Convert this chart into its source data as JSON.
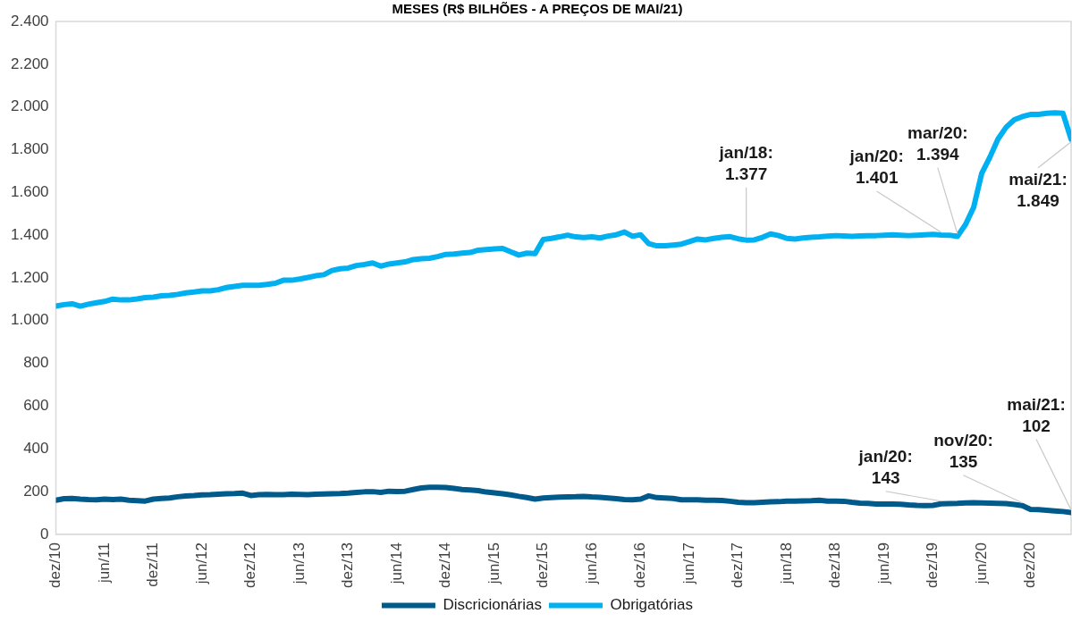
{
  "chart_data": {
    "type": "line",
    "title": "MESES (R$ BILHÕES - A PREÇOS DE MAI/21)",
    "x": [
      "2010-12",
      "2011-01",
      "2011-02",
      "2011-03",
      "2011-04",
      "2011-05",
      "2011-06",
      "2011-07",
      "2011-08",
      "2011-09",
      "2011-10",
      "2011-11",
      "2011-12",
      "2012-01",
      "2012-02",
      "2012-03",
      "2012-04",
      "2012-05",
      "2012-06",
      "2012-07",
      "2012-08",
      "2012-09",
      "2012-10",
      "2012-11",
      "2012-12",
      "2013-01",
      "2013-02",
      "2013-03",
      "2013-04",
      "2013-05",
      "2013-06",
      "2013-07",
      "2013-08",
      "2013-09",
      "2013-10",
      "2013-11",
      "2013-12",
      "2014-01",
      "2014-02",
      "2014-03",
      "2014-04",
      "2014-05",
      "2014-06",
      "2014-07",
      "2014-08",
      "2014-09",
      "2014-10",
      "2014-11",
      "2014-12",
      "2015-01",
      "2015-02",
      "2015-03",
      "2015-04",
      "2015-05",
      "2015-06",
      "2015-07",
      "2015-08",
      "2015-09",
      "2015-10",
      "2015-11",
      "2015-12",
      "2016-01",
      "2016-02",
      "2016-03",
      "2016-04",
      "2016-05",
      "2016-06",
      "2016-07",
      "2016-08",
      "2016-09",
      "2016-10",
      "2016-11",
      "2016-12",
      "2017-01",
      "2017-02",
      "2017-03",
      "2017-04",
      "2017-05",
      "2017-06",
      "2017-07",
      "2017-08",
      "2017-09",
      "2017-10",
      "2017-11",
      "2017-12",
      "2018-01",
      "2018-02",
      "2018-03",
      "2018-04",
      "2018-05",
      "2018-06",
      "2018-07",
      "2018-08",
      "2018-09",
      "2018-10",
      "2018-11",
      "2018-12",
      "2019-01",
      "2019-02",
      "2019-03",
      "2019-04",
      "2019-05",
      "2019-06",
      "2019-07",
      "2019-08",
      "2019-09",
      "2019-10",
      "2019-11",
      "2019-12",
      "2020-01",
      "2020-02",
      "2020-03",
      "2020-04",
      "2020-05",
      "2020-06",
      "2020-07",
      "2020-08",
      "2020-09",
      "2020-10",
      "2020-11",
      "2020-12",
      "2021-01",
      "2021-02",
      "2021-03",
      "2021-04",
      "2021-05"
    ],
    "series": [
      {
        "name": "Discricionárias",
        "color": "#005b8c",
        "values": [
          160,
          167,
          168,
          165,
          163,
          162,
          165,
          163,
          165,
          160,
          158,
          156,
          165,
          168,
          170,
          176,
          180,
          182,
          185,
          186,
          188,
          190,
          191,
          193,
          182,
          186,
          187,
          186,
          186,
          188,
          187,
          186,
          188,
          189,
          190,
          191,
          193,
          196,
          199,
          200,
          196,
          202,
          201,
          202,
          210,
          217,
          220,
          220,
          219,
          215,
          210,
          208,
          205,
          198,
          194,
          190,
          185,
          178,
          172,
          165,
          170,
          172,
          174,
          175,
          176,
          178,
          175,
          173,
          170,
          167,
          163,
          162,
          165,
          180,
          172,
          170,
          168,
          162,
          162,
          162,
          160,
          160,
          159,
          155,
          150,
          148,
          148,
          150,
          152,
          153,
          156,
          156,
          157,
          158,
          160,
          156,
          156,
          155,
          150,
          146,
          145,
          142,
          142,
          142,
          141,
          138,
          136,
          135,
          136,
          143,
          144,
          145,
          147,
          148,
          147,
          146,
          145,
          144,
          140,
          135,
          117,
          116,
          113,
          110,
          107,
          102
        ]
      },
      {
        "name": "Obrigatórias",
        "color": "#00b0f0",
        "values": [
          1068,
          1075,
          1079,
          1068,
          1077,
          1084,
          1090,
          1101,
          1097,
          1097,
          1102,
          1108,
          1110,
          1116,
          1118,
          1123,
          1130,
          1134,
          1139,
          1139,
          1145,
          1155,
          1160,
          1165,
          1165,
          1165,
          1170,
          1175,
          1189,
          1189,
          1195,
          1202,
          1210,
          1215,
          1235,
          1243,
          1246,
          1258,
          1263,
          1270,
          1255,
          1265,
          1270,
          1275,
          1286,
          1290,
          1292,
          1300,
          1310,
          1312,
          1316,
          1319,
          1330,
          1333,
          1336,
          1338,
          1322,
          1307,
          1316,
          1314,
          1380,
          1385,
          1392,
          1400,
          1392,
          1389,
          1392,
          1387,
          1396,
          1402,
          1415,
          1395,
          1402,
          1360,
          1350,
          1350,
          1354,
          1358,
          1370,
          1382,
          1378,
          1385,
          1390,
          1393,
          1383,
          1377,
          1378,
          1390,
          1406,
          1398,
          1385,
          1382,
          1387,
          1390,
          1392,
          1395,
          1398,
          1396,
          1394,
          1396,
          1397,
          1398,
          1400,
          1402,
          1400,
          1398,
          1400,
          1402,
          1404,
          1401,
          1400,
          1394,
          1450,
          1530,
          1690,
          1765,
          1850,
          1905,
          1940,
          1955,
          1965,
          1965,
          1970,
          1972,
          1970,
          1849
        ]
      }
    ],
    "xlim": [
      "2010-12",
      "2021-05"
    ],
    "xticks": [
      {
        "value": "2010-12",
        "label": "dez/10"
      },
      {
        "value": "2011-06",
        "label": "jun/11"
      },
      {
        "value": "2011-12",
        "label": "dez/11"
      },
      {
        "value": "2012-06",
        "label": "jun/12"
      },
      {
        "value": "2012-12",
        "label": "dez/12"
      },
      {
        "value": "2013-06",
        "label": "jun/13"
      },
      {
        "value": "2013-12",
        "label": "dez/13"
      },
      {
        "value": "2014-06",
        "label": "jun/14"
      },
      {
        "value": "2014-12",
        "label": "dez/14"
      },
      {
        "value": "2015-06",
        "label": "jun/15"
      },
      {
        "value": "2015-12",
        "label": "dez/15"
      },
      {
        "value": "2016-06",
        "label": "jun/16"
      },
      {
        "value": "2016-12",
        "label": "dez/16"
      },
      {
        "value": "2017-06",
        "label": "jun/17"
      },
      {
        "value": "2017-12",
        "label": "dez/17"
      },
      {
        "value": "2018-06",
        "label": "jun/18"
      },
      {
        "value": "2018-12",
        "label": "dez/18"
      },
      {
        "value": "2019-06",
        "label": "jun/19"
      },
      {
        "value": "2019-12",
        "label": "dez/19"
      },
      {
        "value": "2020-06",
        "label": "jun/20"
      },
      {
        "value": "2020-12",
        "label": "dez/20"
      }
    ],
    "ylim": [
      0,
      2400
    ],
    "yticks": [
      0,
      200,
      400,
      600,
      800,
      {
        "value": 1000,
        "label": "1.000"
      },
      {
        "value": 1200,
        "label": "1.200"
      },
      {
        "value": 1400,
        "label": "1.400"
      },
      {
        "value": 1600,
        "label": "1.600"
      },
      {
        "value": 1800,
        "label": "1.800"
      },
      {
        "value": 2000,
        "label": "2.000"
      },
      {
        "value": 2200,
        "label": "2.200"
      },
      {
        "value": 2400,
        "label": "2.400"
      }
    ],
    "annotations": [
      {
        "text": "jan/18:\n1.377",
        "x": "2018-01",
        "y": 1377
      },
      {
        "text": "jan/20:\n1.401",
        "x": "2020-01",
        "y": 1401
      },
      {
        "text": "mar/20:\n1.394",
        "x": "2020-03",
        "y": 1394
      },
      {
        "text": "mai/21:\n1.849",
        "x": "2021-05",
        "y": 1849
      },
      {
        "text": "jan/20:\n143",
        "x": "2020-01",
        "y": 143
      },
      {
        "text": "nov/20:\n135",
        "x": "2020-11",
        "y": 135
      },
      {
        "text": "mai/21:\n102",
        "x": "2021-05",
        "y": 102
      }
    ],
    "grid": false,
    "legend": "bottom",
    "marker": "none",
    "line_style": "solid"
  }
}
